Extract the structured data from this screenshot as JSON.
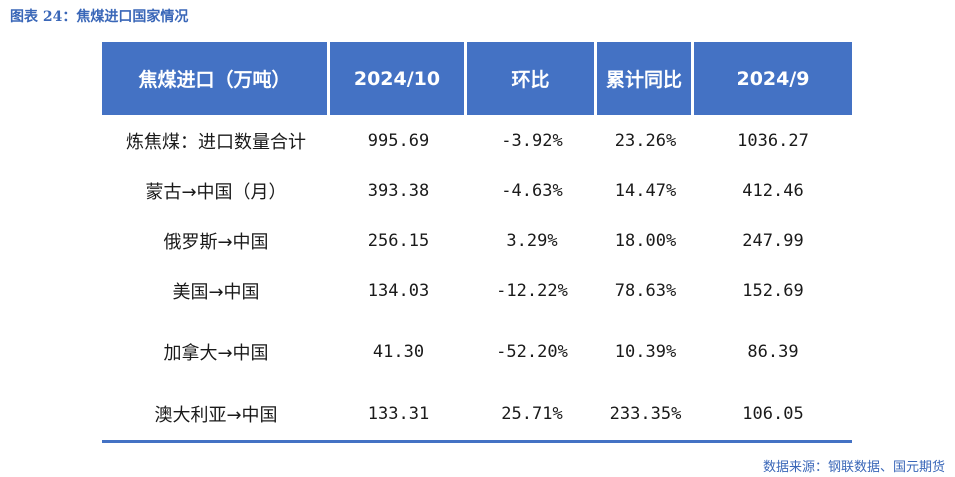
{
  "title": "图表 24：焦煤进口国家情况",
  "table": {
    "headers": [
      "焦煤进口（万吨）",
      "2024/10",
      "环比",
      "累计同比",
      "2024/9"
    ],
    "rows": [
      [
        "炼焦煤：进口数量合计",
        "995.69",
        "-3.92%",
        "23.26%",
        "1036.27"
      ],
      [
        "蒙古→中国（月）",
        "393.38",
        "-4.63%",
        "14.47%",
        "412.46"
      ],
      [
        "俄罗斯→中国",
        "256.15",
        "3.29%",
        "18.00%",
        "247.99"
      ],
      [
        "美国→中国",
        "134.03",
        "-12.22%",
        "78.63%",
        "152.69"
      ],
      [
        "加拿大→中国",
        "41.30",
        "-52.20%",
        "10.39%",
        "86.39"
      ],
      [
        "澳大利亚→中国",
        "133.31",
        "25.71%",
        "233.35%",
        "106.05"
      ]
    ]
  },
  "source": "数据来源：钢联数据、国元期货"
}
